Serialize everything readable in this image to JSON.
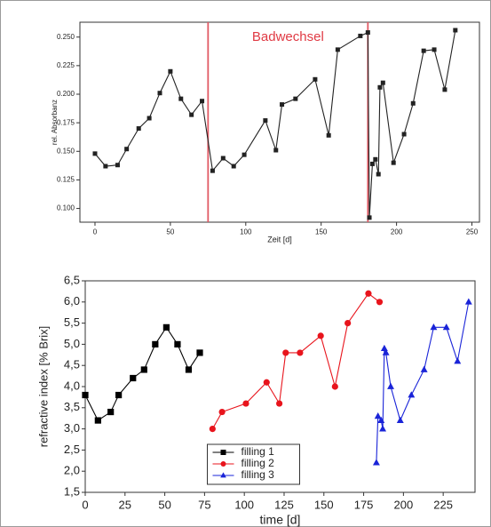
{
  "chart_data": [
    {
      "type": "line",
      "annotation": {
        "text": "Badwechsel",
        "color": "#e03a44"
      },
      "vlines": [
        75,
        181
      ],
      "vline_color": "#e05a64",
      "xlabel": "Zeit [d]",
      "ylabel": "rel. Absorbanz",
      "xlim": [
        -10,
        255
      ],
      "ylim": [
        0.088,
        0.263
      ],
      "xticks": [
        0,
        50,
        100,
        150,
        200,
        250
      ],
      "yticks": [
        {
          "value": 0.1,
          "label": "0.100"
        },
        {
          "value": 0.125,
          "label": "0.125"
        },
        {
          "value": 0.15,
          "label": "0.150"
        },
        {
          "value": 0.175,
          "label": "0.175"
        },
        {
          "value": 0.2,
          "label": "0.200"
        },
        {
          "value": 0.225,
          "label": "0.225"
        },
        {
          "value": 0.25,
          "label": "0.250"
        }
      ],
      "series": [
        {
          "color": "#222222",
          "marker": "square",
          "x": [
            0,
            7,
            15,
            21,
            29,
            36,
            43,
            50,
            57,
            64,
            71,
            78,
            85,
            92,
            99,
            113,
            120,
            124,
            133,
            146,
            155,
            161,
            176,
            181,
            182,
            184,
            186,
            188,
            189,
            191,
            198,
            205,
            211,
            218,
            225,
            232,
            239
          ],
          "values": [
            0.148,
            0.137,
            0.138,
            0.152,
            0.17,
            0.179,
            0.201,
            0.22,
            0.196,
            0.182,
            0.194,
            0.133,
            0.144,
            0.137,
            0.147,
            0.177,
            0.151,
            0.191,
            0.196,
            0.213,
            0.164,
            0.239,
            0.251,
            0.254,
            0.092,
            0.139,
            0.143,
            0.13,
            0.206,
            0.21,
            0.14,
            0.165,
            0.192,
            0.238,
            0.239,
            0.204,
            0.256
          ]
        }
      ]
    },
    {
      "type": "line",
      "xlabel": "time [d]",
      "ylabel": "refractive index [% Brix]",
      "xlim": [
        0,
        245
      ],
      "ylim": [
        1.5,
        6.5
      ],
      "xticks": [
        0,
        25,
        50,
        75,
        100,
        125,
        150,
        175,
        200,
        225
      ],
      "yticks": [
        {
          "value": 1.5,
          "label": "1,5"
        },
        {
          "value": 2.0,
          "label": "2,0"
        },
        {
          "value": 2.5,
          "label": "2,5"
        },
        {
          "value": 3.0,
          "label": "3,0"
        },
        {
          "value": 3.5,
          "label": "3,5"
        },
        {
          "value": 4.0,
          "label": "4,0"
        },
        {
          "value": 4.5,
          "label": "4,5"
        },
        {
          "value": 5.0,
          "label": "5,0"
        },
        {
          "value": 5.5,
          "label": "5,5"
        },
        {
          "value": 6.0,
          "label": "6,0"
        },
        {
          "value": 6.5,
          "label": "6,5"
        }
      ],
      "legend": "lower center",
      "series": [
        {
          "name": "filling 1",
          "color": "#000000",
          "marker": "square",
          "x": [
            0,
            8,
            16,
            21,
            30,
            37,
            44,
            51,
            58,
            65,
            72
          ],
          "values": [
            3.8,
            3.2,
            3.4,
            3.8,
            4.2,
            4.4,
            5.0,
            5.4,
            5.0,
            4.4,
            4.8
          ]
        },
        {
          "name": "filling 2",
          "color": "#e8141c",
          "marker": "circle",
          "x": [
            80,
            86,
            101,
            114,
            122,
            126,
            135,
            148,
            157,
            165,
            178,
            185
          ],
          "values": [
            3.0,
            3.4,
            3.6,
            4.1,
            3.6,
            4.8,
            4.8,
            5.2,
            4.0,
            5.5,
            6.2,
            6.0
          ]
        },
        {
          "name": "filling 3",
          "color": "#1a24d8",
          "marker": "triangle",
          "x": [
            183,
            184,
            186,
            187,
            188,
            189,
            192,
            198,
            205,
            213,
            219,
            227,
            234,
            241
          ],
          "values": [
            2.2,
            3.3,
            3.2,
            3.0,
            4.9,
            4.8,
            4.0,
            3.2,
            3.8,
            4.4,
            5.4,
            5.4,
            4.6,
            6.0
          ]
        }
      ]
    }
  ]
}
